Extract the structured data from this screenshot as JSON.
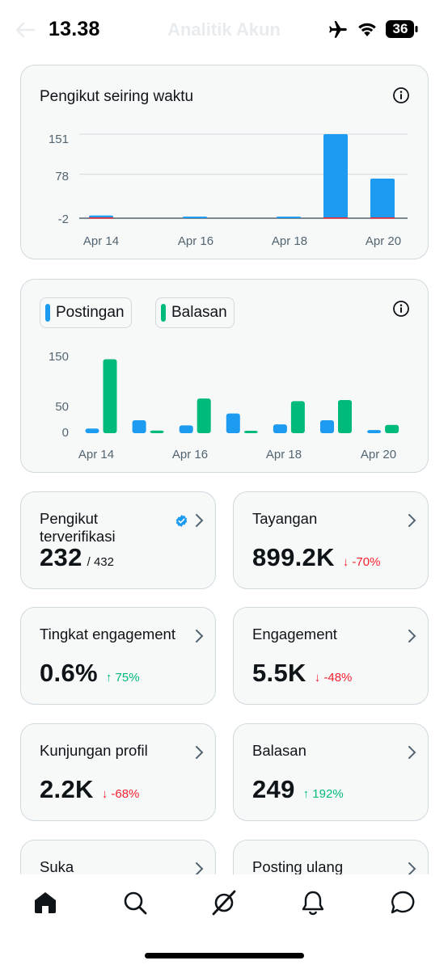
{
  "status_bar": {
    "time": "13.38",
    "battery": "36",
    "faded_title": "Analitik Akun"
  },
  "followers_chart": {
    "title": "Pengikut seiring waktu",
    "y_ticks": [
      "151",
      "78",
      "-2"
    ],
    "x_ticks": [
      "Apr 14",
      "Apr 16",
      "Apr 18",
      "Apr 20"
    ]
  },
  "posts_chart": {
    "legend": [
      {
        "label": "Postingan",
        "color": "#1d9bf0"
      },
      {
        "label": "Balasan",
        "color": "#00ba7c"
      }
    ],
    "y_ticks": [
      "150",
      "50",
      "0"
    ],
    "x_ticks": [
      "Apr 14",
      "Apr 16",
      "Apr 18",
      "Apr 20"
    ]
  },
  "chart_data": [
    {
      "type": "bar",
      "title": "Pengikut seiring waktu",
      "categories": [
        "Apr 14",
        "Apr 15",
        "Apr 16",
        "Apr 17",
        "Apr 18",
        "Apr 19",
        "Apr 20"
      ],
      "values": [
        3,
        0,
        1,
        0,
        1,
        151,
        70
      ],
      "negatives": [
        -1,
        0,
        0,
        0,
        0,
        -2,
        -1
      ],
      "ylim": [
        -2,
        151
      ],
      "colors": {
        "positive": "#1d9bf0",
        "negative": "#f4212e"
      }
    },
    {
      "type": "bar",
      "categories": [
        "Apr 14",
        "Apr 15",
        "Apr 16",
        "Apr 17",
        "Apr 18",
        "Apr 19",
        "Apr 20"
      ],
      "series": [
        {
          "name": "Postingan",
          "values": [
            9,
            25,
            15,
            38,
            17,
            25,
            6
          ]
        },
        {
          "name": "Balasan",
          "values": [
            143,
            5,
            67,
            4,
            62,
            64,
            16
          ]
        }
      ],
      "ylim": [
        0,
        150
      ]
    }
  ],
  "metrics": [
    {
      "title": "Pengikut terverifikasi",
      "value": "232",
      "sub": "/ 432",
      "change": ""
    },
    {
      "title": "Tayangan",
      "value": "899.2K",
      "sub": "",
      "change": "↓ -70%"
    },
    {
      "title": "Tingkat engagement",
      "value": "0.6%",
      "sub": "",
      "change": "↑ 75%"
    },
    {
      "title": "Engagement",
      "value": "5.5K",
      "sub": "",
      "change": "↓ -48%"
    },
    {
      "title": "Kunjungan profil",
      "value": "2.2K",
      "sub": "",
      "change": "↓ -68%"
    },
    {
      "title": "Balasan",
      "value": "249",
      "sub": "",
      "change": "↑ 192%"
    },
    {
      "title": "Suka",
      "value": "",
      "sub": "",
      "change": ""
    },
    {
      "title": "Posting ulang",
      "value": "",
      "sub": "",
      "change": ""
    }
  ],
  "nav": [
    "home-icon",
    "search-icon",
    "grok-icon",
    "notifications-icon",
    "messages-icon"
  ]
}
